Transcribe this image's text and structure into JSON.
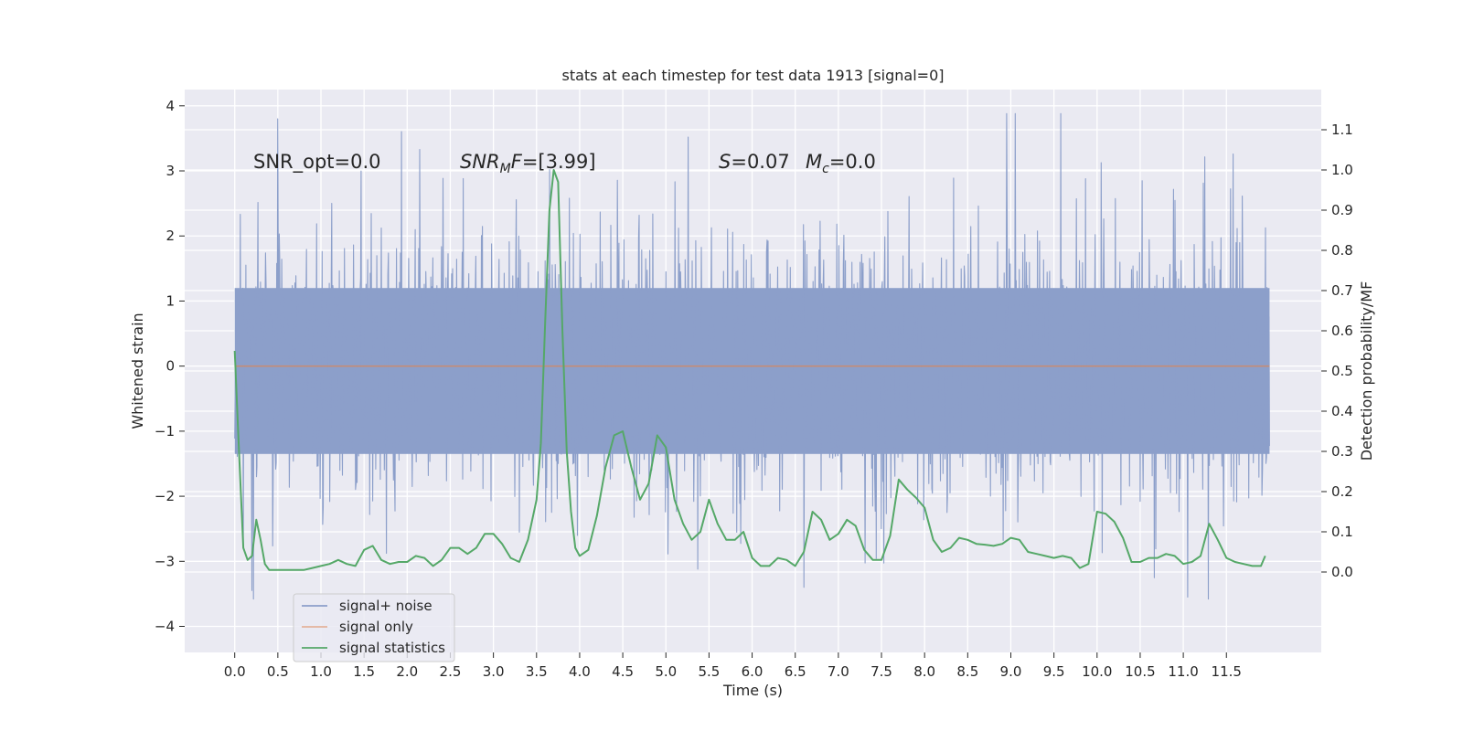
{
  "chart_data": {
    "type": "line",
    "title": "stats at each timestep for test data 1913 [signal=0]",
    "xlabel": "Time (s)",
    "ylabel": "Whitened strain",
    "y2label": "Detection probability/MF",
    "xlim": [
      -0.58,
      12.6
    ],
    "ylim": [
      -4.4,
      4.25
    ],
    "y2lim": [
      -0.2,
      1.2
    ],
    "xticks": [
      0.0,
      0.5,
      1.0,
      1.5,
      2.0,
      2.5,
      3.0,
      3.5,
      4.0,
      4.5,
      5.0,
      5.5,
      6.0,
      6.5,
      7.0,
      7.5,
      8.0,
      8.5,
      9.0,
      9.5,
      10.0,
      10.5,
      11.0,
      11.5
    ],
    "xtick_labels": [
      "0.0",
      "0.5",
      "1.0",
      "1.5",
      "2.0",
      "2.5",
      "3.0",
      "3.5",
      "4.0",
      "4.5",
      "5.0",
      "5.5",
      "6.0",
      "6.5",
      "7.0",
      "7.5",
      "8.0",
      "8.5",
      "9.0",
      "9.5",
      "10.0",
      "10.5",
      "11.0",
      "11.5"
    ],
    "yticks": [
      -4,
      -3,
      -2,
      -1,
      0,
      1,
      2,
      3,
      4
    ],
    "ytick_labels": [
      "−4",
      "−3",
      "−2",
      "−1",
      "0",
      "1",
      "2",
      "3",
      "4"
    ],
    "y2ticks": [
      0.0,
      0.1,
      0.2,
      0.3,
      0.4,
      0.5,
      0.6,
      0.7,
      0.8,
      0.9,
      1.0,
      1.1
    ],
    "y2tick_labels": [
      "0.0",
      "0.1",
      "0.2",
      "0.3",
      "0.4",
      "0.5",
      "0.6",
      "0.7",
      "0.8",
      "0.9",
      "1.0",
      "1.1"
    ],
    "grid": true,
    "legend_position": "lower-left",
    "annotations": {
      "snr_opt": "SNR_opt=0.0",
      "snr_mf_main": "SNR",
      "snr_mf_sub": "M",
      "snr_mf_rest": "F=[3.99]",
      "s_main": "S",
      "s_rest": "=0.07",
      "mc_main": "M",
      "mc_sub": "c",
      "mc_rest": "=0.0"
    },
    "series": [
      {
        "name": "signal+ noise",
        "axis": "left",
        "color": "#8c9fca",
        "x_range": [
          0.0,
          12.0
        ],
        "samples": 2048,
        "envelope": {
          "core_low": -1.35,
          "core_high": 1.2,
          "max_peak": 3.88,
          "min_trough": -3.58
        },
        "noted_extremes": [
          {
            "x": 0.5,
            "y": 3.8
          },
          {
            "x": 8.95,
            "y": 3.88
          },
          {
            "x": 11.05,
            "y": -3.55
          },
          {
            "x": 0.2,
            "y": -3.45
          },
          {
            "x": 6.6,
            "y": -3.4
          }
        ]
      },
      {
        "name": "signal only",
        "axis": "left",
        "color": "#dd8452",
        "x": [
          0.0,
          12.0
        ],
        "y": [
          0.0,
          0.0
        ]
      },
      {
        "name": "signal statistics",
        "axis": "right",
        "color": "#55a868",
        "x": [
          0.0,
          0.05,
          0.1,
          0.15,
          0.2,
          0.25,
          0.3,
          0.35,
          0.4,
          0.45,
          0.5,
          0.6,
          0.7,
          0.8,
          0.9,
          1.0,
          1.1,
          1.2,
          1.3,
          1.4,
          1.5,
          1.6,
          1.7,
          1.8,
          1.9,
          2.0,
          2.1,
          2.2,
          2.3,
          2.4,
          2.5,
          2.6,
          2.7,
          2.8,
          2.9,
          3.0,
          3.1,
          3.2,
          3.3,
          3.4,
          3.5,
          3.55,
          3.6,
          3.65,
          3.7,
          3.75,
          3.8,
          3.85,
          3.9,
          3.95,
          4.0,
          4.1,
          4.2,
          4.3,
          4.4,
          4.5,
          4.6,
          4.7,
          4.8,
          4.9,
          5.0,
          5.1,
          5.2,
          5.3,
          5.4,
          5.5,
          5.6,
          5.7,
          5.8,
          5.9,
          6.0,
          6.1,
          6.2,
          6.3,
          6.4,
          6.5,
          6.6,
          6.7,
          6.8,
          6.9,
          7.0,
          7.1,
          7.2,
          7.3,
          7.4,
          7.5,
          7.6,
          7.7,
          7.8,
          7.9,
          8.0,
          8.1,
          8.2,
          8.3,
          8.4,
          8.5,
          8.6,
          8.7,
          8.8,
          8.9,
          9.0,
          9.1,
          9.2,
          9.3,
          9.4,
          9.5,
          9.6,
          9.7,
          9.8,
          9.9,
          10.0,
          10.1,
          10.2,
          10.3,
          10.4,
          10.5,
          10.6,
          10.7,
          10.8,
          10.9,
          11.0,
          11.1,
          11.2,
          11.3,
          11.4,
          11.5,
          11.6,
          11.7,
          11.8,
          11.9,
          11.95
        ],
        "y": [
          0.55,
          0.3,
          0.06,
          0.03,
          0.04,
          0.13,
          0.08,
          0.02,
          0.005,
          0.005,
          0.005,
          0.005,
          0.005,
          0.005,
          0.01,
          0.015,
          0.02,
          0.03,
          0.02,
          0.015,
          0.055,
          0.065,
          0.03,
          0.02,
          0.025,
          0.025,
          0.04,
          0.035,
          0.015,
          0.03,
          0.06,
          0.06,
          0.045,
          0.06,
          0.095,
          0.095,
          0.07,
          0.035,
          0.025,
          0.08,
          0.18,
          0.32,
          0.62,
          0.9,
          1.0,
          0.97,
          0.6,
          0.3,
          0.15,
          0.06,
          0.04,
          0.055,
          0.14,
          0.26,
          0.34,
          0.35,
          0.26,
          0.18,
          0.22,
          0.34,
          0.31,
          0.18,
          0.12,
          0.08,
          0.1,
          0.18,
          0.12,
          0.08,
          0.08,
          0.1,
          0.035,
          0.015,
          0.015,
          0.035,
          0.03,
          0.015,
          0.05,
          0.15,
          0.13,
          0.08,
          0.095,
          0.13,
          0.115,
          0.055,
          0.03,
          0.03,
          0.09,
          0.23,
          0.205,
          0.185,
          0.16,
          0.08,
          0.05,
          0.06,
          0.085,
          0.08,
          0.07,
          0.068,
          0.065,
          0.07,
          0.085,
          0.08,
          0.05,
          0.045,
          0.04,
          0.035,
          0.04,
          0.035,
          0.01,
          0.02,
          0.15,
          0.145,
          0.125,
          0.085,
          0.025,
          0.025,
          0.035,
          0.035,
          0.045,
          0.04,
          0.02,
          0.025,
          0.04,
          0.12,
          0.08,
          0.035,
          0.025,
          0.02,
          0.015,
          0.015,
          0.04
        ]
      }
    ]
  }
}
